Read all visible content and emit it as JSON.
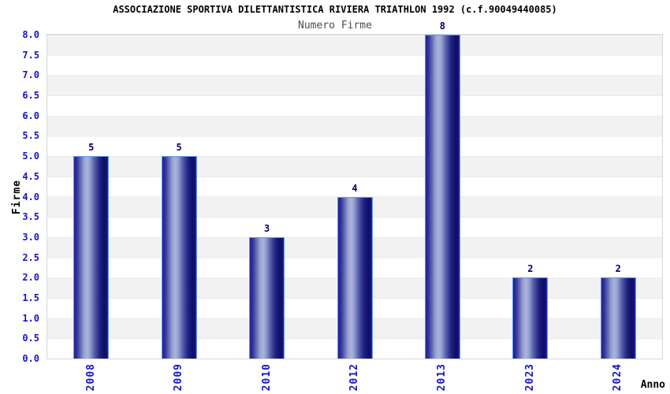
{
  "header": {
    "title": "ASSOCIAZIONE SPORTIVA DILETTANTISTICA RIVIERA TRIATHLON 1992 (c.f.90049440085)",
    "subtitle": "Numero Firme"
  },
  "axes": {
    "y_title": "Firme",
    "x_title": "Anno"
  },
  "chart_data": {
    "type": "bar",
    "title": "Numero Firme",
    "categories": [
      "2008",
      "2009",
      "2010",
      "2012",
      "2013",
      "2023",
      "2024"
    ],
    "values": [
      5,
      5,
      3,
      4,
      8,
      2,
      2
    ],
    "bar_value_labels": [
      "5",
      "5",
      "3",
      "4",
      "8",
      "2",
      "2"
    ],
    "xlabel": "Anno",
    "ylabel": "Firme",
    "ylim": [
      0.0,
      8.0
    ],
    "ytick_step": 0.5,
    "ytick_labels": [
      "0.0",
      "0.5",
      "1.0",
      "1.5",
      "2.0",
      "2.5",
      "3.0",
      "3.5",
      "4.0",
      "4.5",
      "5.0",
      "5.5",
      "6.0",
      "6.5",
      "7.0",
      "7.5",
      "8.0"
    ],
    "legend": false,
    "grid": "alternating-horizontal-bands"
  },
  "colors": {
    "axis_tick_label": "#1414cc",
    "bar_value_label": "#000066",
    "bar_gradient_dark": "#10106a",
    "bar_gradient_light": "#aab3dc",
    "bar_border": "#5f9bf0",
    "band_gray": "#f2f2f2",
    "band_white": "#ffffff",
    "plot_border": "#d7d7d7",
    "title": "#000000",
    "subtitle": "#4d4d4d"
  }
}
